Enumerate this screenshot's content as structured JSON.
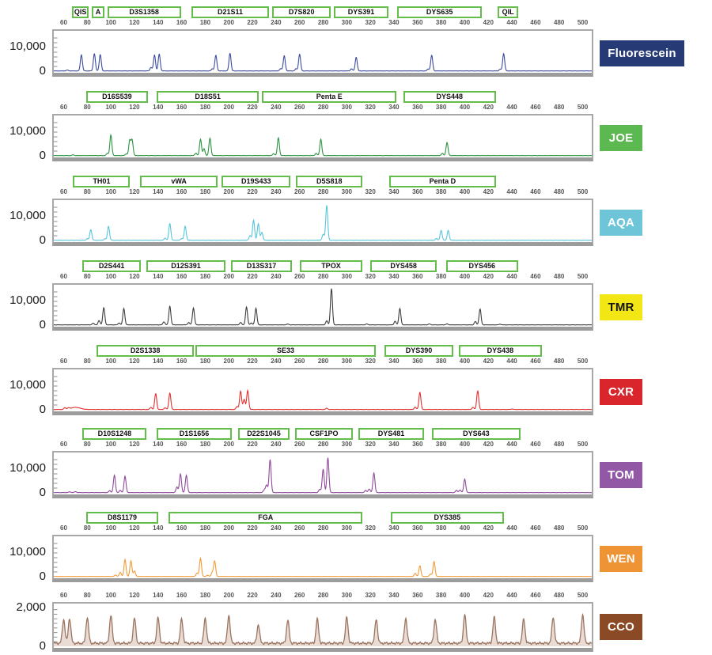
{
  "marker_border_color": "#62bd4a",
  "chart_data": {
    "type": "line",
    "chart_kind": "capillary-electrophoresis-electropherogram",
    "x_axis": {
      "range": [
        60,
        500
      ],
      "tick_step": 20,
      "ticks": [
        60,
        80,
        100,
        120,
        140,
        160,
        180,
        200,
        220,
        240,
        260,
        280,
        300,
        320,
        340,
        360,
        380,
        400,
        420,
        440,
        460,
        480,
        500
      ]
    },
    "panels": [
      {
        "dye": "Fluorescein",
        "dye_box_color": "#263a75",
        "dye_text_color": "#ffffff",
        "trace_color": "#3b4b9e",
        "y_axis": {
          "max_label": "10,000",
          "max_value": 10000,
          "scale_max": 16000,
          "zero_label": "0",
          "tick_interval": 2000
        },
        "baseline_rfu": 70,
        "noise_rfu": 90,
        "peak_sigma_bp": 0.85,
        "markers": [
          {
            "label": "QIS",
            "start": 67,
            "end": 80
          },
          {
            "label": "A",
            "start": 84,
            "end": 93
          },
          {
            "label": "D3S1358",
            "start": 97,
            "end": 158
          },
          {
            "label": "D21S11",
            "start": 168,
            "end": 233
          },
          {
            "label": "D7S820",
            "start": 237,
            "end": 285
          },
          {
            "label": "DYS391",
            "start": 289,
            "end": 334
          },
          {
            "label": "DYS635",
            "start": 343,
            "end": 413
          },
          {
            "label": "QIL",
            "start": 428,
            "end": 444
          }
        ],
        "peaks": [
          [
            63,
            400
          ],
          [
            75,
            6800
          ],
          [
            86,
            7300
          ],
          [
            91,
            6900
          ],
          [
            134,
            1500
          ],
          [
            137,
            6700
          ],
          [
            141,
            7100
          ],
          [
            186,
            900
          ],
          [
            189,
            6600
          ],
          [
            201,
            7500
          ],
          [
            244,
            1000
          ],
          [
            247,
            6400
          ],
          [
            257,
            900
          ],
          [
            260,
            7100
          ],
          [
            304,
            900
          ],
          [
            308,
            5800
          ],
          [
            369,
            800
          ],
          [
            372,
            6600
          ],
          [
            430,
            700
          ],
          [
            433,
            7300
          ]
        ]
      },
      {
        "dye": "JOE",
        "dye_box_color": "#5cb952",
        "dye_text_color": "#ffffff",
        "trace_color": "#2b9440",
        "y_axis": {
          "max_label": "10,000",
          "max_value": 10000,
          "scale_max": 16000,
          "zero_label": "0",
          "tick_interval": 2000
        },
        "baseline_rfu": 70,
        "noise_rfu": 90,
        "peak_sigma_bp": 0.85,
        "markers": [
          {
            "label": "D16S539",
            "start": 79,
            "end": 130
          },
          {
            "label": "D18S51",
            "start": 139,
            "end": 224
          },
          {
            "label": "Penta E",
            "start": 228,
            "end": 341
          },
          {
            "label": "DYS448",
            "start": 348,
            "end": 425
          }
        ],
        "peaks": [
          [
            68,
            300
          ],
          [
            97,
            900
          ],
          [
            100,
            8700
          ],
          [
            113,
            700
          ],
          [
            116,
            6300
          ],
          [
            118,
            6500
          ],
          [
            172,
            1000
          ],
          [
            176,
            6900
          ],
          [
            179,
            2900
          ],
          [
            184,
            7300
          ],
          [
            238,
            800
          ],
          [
            242,
            7500
          ],
          [
            274,
            900
          ],
          [
            278,
            6900
          ],
          [
            381,
            900
          ],
          [
            385,
            5500
          ]
        ]
      },
      {
        "dye": "AQA",
        "dye_box_color": "#6fc5d8",
        "dye_text_color": "#ffffff",
        "trace_color": "#58c5dc",
        "y_axis": {
          "max_label": "10,000",
          "max_value": 10000,
          "scale_max": 16000,
          "zero_label": "0",
          "tick_interval": 2000
        },
        "baseline_rfu": 70,
        "noise_rfu": 90,
        "peak_sigma_bp": 0.85,
        "markers": [
          {
            "label": "TH01",
            "start": 68,
            "end": 115
          },
          {
            "label": "vWA",
            "start": 125,
            "end": 189
          },
          {
            "label": "D19S433",
            "start": 194,
            "end": 251
          },
          {
            "label": "D5S818",
            "start": 257,
            "end": 312
          },
          {
            "label": "Penta D",
            "start": 336,
            "end": 425
          }
        ],
        "peaks": [
          [
            80,
            600
          ],
          [
            83,
            4500
          ],
          [
            95,
            600
          ],
          [
            98,
            5900
          ],
          [
            146,
            900
          ],
          [
            150,
            7100
          ],
          [
            160,
            700
          ],
          [
            163,
            5900
          ],
          [
            218,
            1900
          ],
          [
            221,
            8500
          ],
          [
            225,
            7000
          ],
          [
            228,
            3300
          ],
          [
            280,
            2500
          ],
          [
            283,
            14700
          ],
          [
            376,
            700
          ],
          [
            380,
            4100
          ],
          [
            386,
            4100
          ]
        ]
      },
      {
        "dye": "TMR",
        "dye_box_color": "#f2e715",
        "dye_text_color": "#131313",
        "trace_color": "#3d3d3d",
        "y_axis": {
          "max_label": "10,000",
          "max_value": 10000,
          "scale_max": 16000,
          "zero_label": "0",
          "tick_interval": 2000
        },
        "baseline_rfu": 70,
        "noise_rfu": 90,
        "peak_sigma_bp": 0.85,
        "markers": [
          {
            "label": "D2S441",
            "start": 76,
            "end": 124
          },
          {
            "label": "D12S391",
            "start": 130,
            "end": 196
          },
          {
            "label": "D13S317",
            "start": 202,
            "end": 252
          },
          {
            "label": "TPOX",
            "start": 260,
            "end": 312
          },
          {
            "label": "DYS458",
            "start": 320,
            "end": 375
          },
          {
            "label": "DYS456",
            "start": 384,
            "end": 444
          }
        ],
        "peaks": [
          [
            85,
            700
          ],
          [
            90,
            1800
          ],
          [
            94,
            7300
          ],
          [
            107,
            800
          ],
          [
            111,
            6900
          ],
          [
            145,
            1300
          ],
          [
            150,
            7900
          ],
          [
            166,
            1000
          ],
          [
            170,
            7100
          ],
          [
            210,
            1000
          ],
          [
            215,
            7500
          ],
          [
            219,
            800
          ],
          [
            223,
            7000
          ],
          [
            250,
            350
          ],
          [
            283,
            1700
          ],
          [
            287,
            15300
          ],
          [
            317,
            400
          ],
          [
            341,
            1500
          ],
          [
            345,
            6900
          ],
          [
            370,
            400
          ],
          [
            385,
            400
          ],
          [
            409,
            1400
          ],
          [
            413,
            6700
          ],
          [
            430,
            300
          ]
        ]
      },
      {
        "dye": "CXR",
        "dye_box_color": "#d8262c",
        "dye_text_color": "#ffffff",
        "trace_color": "#e0312f",
        "y_axis": {
          "max_label": "10,000",
          "max_value": 10000,
          "scale_max": 16000,
          "zero_label": "0",
          "tick_interval": 2000
        },
        "baseline_rfu": 70,
        "noise_rfu": 110,
        "peak_sigma_bp": 0.85,
        "markers": [
          {
            "label": "D2S1338",
            "start": 88,
            "end": 169
          },
          {
            "label": "SE33",
            "start": 172,
            "end": 323
          },
          {
            "label": "DYS390",
            "start": 332,
            "end": 389
          },
          {
            "label": "DYS438",
            "start": 395,
            "end": 464
          }
        ],
        "peaks": [
          [
            61,
            700
          ],
          [
            64,
            500
          ],
          [
            70,
            900,
            4
          ],
          [
            134,
            900
          ],
          [
            138,
            6700
          ],
          [
            146,
            700
          ],
          [
            150,
            7000
          ],
          [
            207,
            1300
          ],
          [
            210,
            7700
          ],
          [
            213,
            4300
          ],
          [
            216,
            8000
          ],
          [
            283,
            500
          ],
          [
            358,
            1000
          ],
          [
            362,
            7300
          ],
          [
            407,
            900
          ],
          [
            411,
            7900
          ],
          [
            440,
            200
          ]
        ]
      },
      {
        "dye": "TOM",
        "dye_box_color": "#9257a5",
        "dye_text_color": "#ffffff",
        "trace_color": "#90499c",
        "y_axis": {
          "max_label": "10,000",
          "max_value": 10000,
          "scale_max": 16000,
          "zero_label": "0",
          "tick_interval": 2000
        },
        "baseline_rfu": 70,
        "noise_rfu": 90,
        "peak_sigma_bp": 0.85,
        "markers": [
          {
            "label": "D10S1248",
            "start": 76,
            "end": 129
          },
          {
            "label": "D1S1656",
            "start": 139,
            "end": 201
          },
          {
            "label": "D22S1045",
            "start": 208,
            "end": 250
          },
          {
            "label": "CSF1PO",
            "start": 256,
            "end": 304
          },
          {
            "label": "DYS481",
            "start": 310,
            "end": 364
          },
          {
            "label": "DYS643",
            "start": 372,
            "end": 446
          }
        ],
        "peaks": [
          [
            65,
            300
          ],
          [
            70,
            400
          ],
          [
            99,
            800
          ],
          [
            103,
            7300
          ],
          [
            108,
            900
          ],
          [
            112,
            6900
          ],
          [
            156,
            2300
          ],
          [
            159,
            7900
          ],
          [
            164,
            7300
          ],
          [
            230,
            1100
          ],
          [
            232,
            3200
          ],
          [
            235,
            13900
          ],
          [
            277,
            1300
          ],
          [
            280,
            9900
          ],
          [
            284,
            14700
          ],
          [
            316,
            900
          ],
          [
            319,
            1500
          ],
          [
            323,
            8300
          ],
          [
            393,
            900
          ],
          [
            396,
            1100
          ],
          [
            400,
            5700
          ]
        ]
      },
      {
        "dye": "WEN",
        "dye_box_color": "#ef9434",
        "dye_text_color": "#ffffff",
        "trace_color": "#f29b38",
        "y_axis": {
          "max_label": "10,000",
          "max_value": 10000,
          "scale_max": 16000,
          "zero_label": "0",
          "tick_interval": 2000
        },
        "baseline_rfu": 70,
        "noise_rfu": 90,
        "peak_sigma_bp": 0.85,
        "markers": [
          {
            "label": "D8S1179",
            "start": 79,
            "end": 139
          },
          {
            "label": "FGA",
            "start": 149,
            "end": 312
          },
          {
            "label": "DYS385",
            "start": 337,
            "end": 432
          }
        ],
        "peaks": [
          [
            104,
            600
          ],
          [
            108,
            1700
          ],
          [
            112,
            7100
          ],
          [
            117,
            6600
          ],
          [
            120,
            2300
          ],
          [
            173,
            1400
          ],
          [
            176,
            7700
          ],
          [
            182,
            500
          ],
          [
            186,
            1700
          ],
          [
            188,
            6500
          ],
          [
            358,
            1300
          ],
          [
            362,
            4500
          ],
          [
            371,
            1000
          ],
          [
            374,
            6300
          ]
        ]
      },
      {
        "dye": "CCO",
        "dye_box_color": "#8a4a25",
        "dye_text_color": "#ffffff",
        "trace_color": "#9c7461",
        "trace_fill": "rgba(180,138,112,0.30)",
        "y_axis": {
          "max_label": "2,000",
          "max_value": 2000,
          "scale_max": 2200,
          "zero_label": "0",
          "tick_interval": 250
        },
        "baseline_rfu": 110,
        "noise_rfu": 130,
        "peak_sigma_bp": 1.1,
        "markers": [],
        "peaks": [
          [
            60,
            1300
          ],
          [
            65,
            1350
          ],
          [
            80,
            1400
          ],
          [
            100,
            1520
          ],
          [
            120,
            1360
          ],
          [
            140,
            1390
          ],
          [
            160,
            1310
          ],
          [
            180,
            1360
          ],
          [
            200,
            1520
          ],
          [
            225,
            1020
          ],
          [
            250,
            1260
          ],
          [
            275,
            1310
          ],
          [
            300,
            1410
          ],
          [
            325,
            1310
          ],
          [
            350,
            1360
          ],
          [
            375,
            1310
          ],
          [
            400,
            1560
          ],
          [
            425,
            1410
          ],
          [
            450,
            1310
          ],
          [
            475,
            1420
          ],
          [
            500,
            1560
          ]
        ]
      }
    ]
  }
}
